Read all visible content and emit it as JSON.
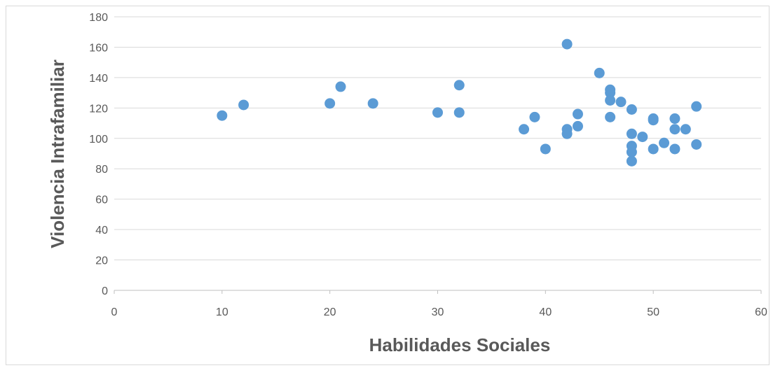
{
  "chart_data": {
    "type": "scatter",
    "title": "",
    "xlabel": "Habilidades Sociales",
    "ylabel": "Violencia Intrafamiliar",
    "xlim": [
      0,
      60
    ],
    "ylim": [
      0,
      180
    ],
    "xticks": [
      0,
      10,
      20,
      30,
      40,
      50,
      60
    ],
    "yticks": [
      0,
      20,
      40,
      60,
      80,
      100,
      120,
      140,
      160,
      180
    ],
    "grid": "horizontal",
    "legend": "none",
    "marker_color": "#5b9bd5",
    "series": [
      {
        "points": [
          [
            10,
            115
          ],
          [
            12,
            122
          ],
          [
            20,
            123
          ],
          [
            21,
            134
          ],
          [
            24,
            123
          ],
          [
            30,
            117
          ],
          [
            32,
            135
          ],
          [
            32,
            117
          ],
          [
            38,
            106
          ],
          [
            39,
            114
          ],
          [
            40,
            93
          ],
          [
            42,
            162
          ],
          [
            42,
            106
          ],
          [
            42,
            103
          ],
          [
            43,
            116
          ],
          [
            43,
            108
          ],
          [
            45,
            143
          ],
          [
            46,
            132
          ],
          [
            46,
            130
          ],
          [
            46,
            125
          ],
          [
            46,
            114
          ],
          [
            47,
            124
          ],
          [
            48,
            119
          ],
          [
            48,
            103
          ],
          [
            48,
            95
          ],
          [
            48,
            91
          ],
          [
            48,
            85
          ],
          [
            49,
            101
          ],
          [
            50,
            113
          ],
          [
            50,
            112
          ],
          [
            50,
            93
          ],
          [
            51,
            97
          ],
          [
            52,
            113
          ],
          [
            52,
            106
          ],
          [
            52,
            93
          ],
          [
            53,
            106
          ],
          [
            54,
            121
          ],
          [
            54,
            96
          ]
        ]
      }
    ]
  }
}
